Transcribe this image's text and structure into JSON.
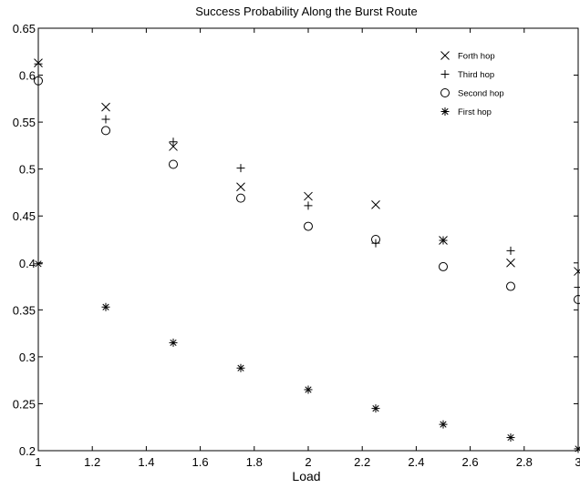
{
  "chart_data": {
    "type": "scatter",
    "title": "Success Probability Along the Burst Route",
    "xlabel": "Load",
    "ylabel": "",
    "xlim": [
      1,
      3
    ],
    "ylim": [
      0.2,
      0.65
    ],
    "xticks": [
      "1",
      "1.2",
      "1.4",
      "1.6",
      "1.8",
      "2",
      "2.2",
      "2.4",
      "2.6",
      "2.8",
      "3"
    ],
    "yticks": [
      "0.2",
      "0.25",
      "0.3",
      "0.35",
      "0.4",
      "0.45",
      "0.5",
      "0.55",
      "0.6",
      "0.65"
    ],
    "grid": false,
    "legend_position": "top-right",
    "x": [
      1,
      1.25,
      1.5,
      1.75,
      2,
      2.25,
      2.5,
      2.75,
      3
    ],
    "series": [
      {
        "name": "Forth hop",
        "marker": "x",
        "values": [
          0.613,
          0.566,
          0.524,
          0.481,
          0.471,
          0.462,
          0.424,
          0.4,
          0.391
        ]
      },
      {
        "name": "Third hop",
        "marker": "plus",
        "values": [
          0.612,
          0.553,
          0.529,
          0.501,
          0.461,
          0.421,
          0.424,
          0.413,
          0.374
        ]
      },
      {
        "name": "Second hop",
        "marker": "circle",
        "values": [
          0.594,
          0.541,
          0.505,
          0.469,
          0.439,
          0.425,
          0.396,
          0.375,
          0.361
        ]
      },
      {
        "name": "First hop",
        "marker": "star",
        "values": [
          0.399,
          0.353,
          0.315,
          0.288,
          0.265,
          0.245,
          0.228,
          0.214,
          0.202
        ]
      }
    ]
  }
}
